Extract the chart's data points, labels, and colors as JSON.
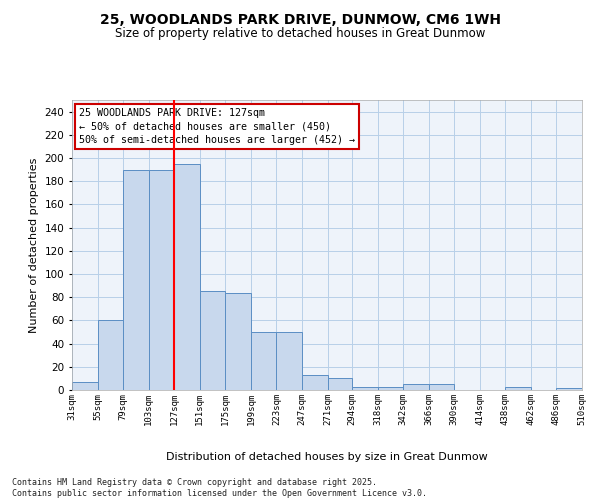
{
  "title_line1": "25, WOODLANDS PARK DRIVE, DUNMOW, CM6 1WH",
  "title_line2": "Size of property relative to detached houses in Great Dunmow",
  "xlabel": "Distribution of detached houses by size in Great Dunmow",
  "ylabel": "Number of detached properties",
  "bar_color": "#c8d8ed",
  "bar_edge_color": "#5b8ec4",
  "grid_color": "#b8cfe8",
  "bg_color": "#eef3fa",
  "red_line_x": 127,
  "annotation_text": "25 WOODLANDS PARK DRIVE: 127sqm\n← 50% of detached houses are smaller (450)\n50% of semi-detached houses are larger (452) →",
  "annotation_box_color": "#ffffff",
  "annotation_border_color": "#cc0000",
  "footer_text": "Contains HM Land Registry data © Crown copyright and database right 2025.\nContains public sector information licensed under the Open Government Licence v3.0.",
  "bin_edges": [
    31,
    55,
    79,
    103,
    127,
    151,
    175,
    199,
    223,
    247,
    271,
    294,
    318,
    342,
    366,
    390,
    414,
    438,
    462,
    486,
    510
  ],
  "bar_heights": [
    7,
    60,
    190,
    190,
    195,
    85,
    84,
    50,
    50,
    13,
    10,
    3,
    3,
    5,
    5,
    0,
    0,
    3,
    0,
    2
  ],
  "ylim": [
    0,
    250
  ],
  "yticks": [
    0,
    20,
    40,
    60,
    80,
    100,
    120,
    140,
    160,
    180,
    200,
    220,
    240
  ]
}
